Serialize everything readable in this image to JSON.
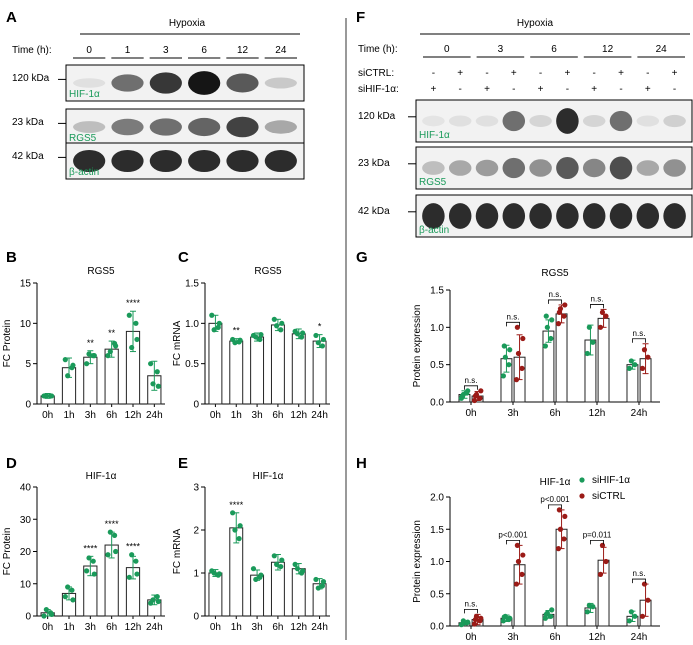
{
  "colors": {
    "green": "#1a9a5a",
    "red": "#9b1b17"
  },
  "panels": {
    "A": "A",
    "B": "B",
    "C": "C",
    "D": "D",
    "E": "E",
    "F": "F",
    "G": "G",
    "H": "H"
  },
  "blotA": {
    "title": "Hypoxia",
    "time_label": "Time (h):",
    "times": [
      "0",
      "1",
      "3",
      "6",
      "12",
      "24"
    ],
    "rows": [
      {
        "kda": "120 kDa",
        "protein": "HIF-1α",
        "levels": [
          0.05,
          0.55,
          0.8,
          0.95,
          0.65,
          0.15
        ]
      },
      {
        "kda": "23 kDa",
        "protein": "RGS5",
        "levels": [
          0.2,
          0.5,
          0.55,
          0.6,
          0.75,
          0.3
        ]
      },
      {
        "kda": "42 kDa",
        "protein": "β-actin",
        "levels": [
          0.85,
          0.85,
          0.85,
          0.85,
          0.85,
          0.85
        ]
      }
    ]
  },
  "blotF": {
    "title": "Hypoxia",
    "time_label": "Time (h):",
    "times": [
      "0",
      "3",
      "6",
      "12",
      "24"
    ],
    "siCTRL_label": "siCTRL:",
    "siHIF_label": "siHIF-1α:",
    "siCTRL": [
      "-",
      "+",
      "-",
      "+",
      "-",
      "+",
      "-",
      "+",
      "-",
      "+"
    ],
    "siHIF": [
      "+",
      "-",
      "+",
      "-",
      "+",
      "-",
      "+",
      "-",
      "+",
      "-"
    ],
    "rows": [
      {
        "kda": "120 kDa",
        "protein": "HIF-1α",
        "levels": [
          0.03,
          0.05,
          0.05,
          0.55,
          0.1,
          0.85,
          0.1,
          0.55,
          0.05,
          0.12
        ]
      },
      {
        "kda": "23 kDa",
        "protein": "RGS5",
        "levels": [
          0.2,
          0.3,
          0.35,
          0.55,
          0.4,
          0.65,
          0.45,
          0.7,
          0.3,
          0.4
        ]
      },
      {
        "kda": "42 kDa",
        "protein": "β-actin",
        "levels": [
          0.85,
          0.85,
          0.85,
          0.85,
          0.85,
          0.85,
          0.85,
          0.85,
          0.85,
          0.85
        ]
      }
    ]
  },
  "chart_data": [
    {
      "panel": "B",
      "type": "bar",
      "title": "RGS5",
      "ylabel": "FC Protein",
      "categories": [
        "0h",
        "1h",
        "3h",
        "6h",
        "12h",
        "24h"
      ],
      "values": [
        1,
        4.5,
        5.8,
        6.8,
        9.0,
        3.5
      ],
      "errors": [
        0.3,
        1.2,
        0.8,
        1.0,
        2.5,
        1.8
      ],
      "points": [
        [
          1,
          1,
          1,
          1
        ],
        [
          5.5,
          4.5,
          3.5,
          4.8
        ],
        [
          5,
          6,
          6.2,
          6
        ],
        [
          6,
          7.5,
          6.5,
          7.2
        ],
        [
          11,
          10,
          7,
          8
        ],
        [
          5,
          4,
          2.5,
          2.2
        ]
      ],
      "sig": [
        "",
        "",
        "**",
        "**",
        "****",
        ""
      ],
      "ylim": [
        0,
        15
      ],
      "yticks": [
        0,
        5,
        10,
        15
      ],
      "color": "green"
    },
    {
      "panel": "C",
      "type": "bar",
      "title": "RGS5",
      "ylabel": "FC mRNA",
      "categories": [
        "0h",
        "1h",
        "3h",
        "6h",
        "12h",
        "24h"
      ],
      "values": [
        1.0,
        0.78,
        0.83,
        0.98,
        0.87,
        0.78
      ],
      "errors": [
        0.1,
        0.03,
        0.05,
        0.07,
        0.06,
        0.08
      ],
      "points": [
        [
          1.1,
          0.95,
          0.92,
          1.0
        ],
        [
          0.8,
          0.77,
          0.76,
          0.79
        ],
        [
          0.85,
          0.8,
          0.83,
          0.86
        ],
        [
          1.05,
          0.92,
          0.97,
          1.0
        ],
        [
          0.9,
          0.83,
          0.87,
          0.88
        ],
        [
          0.85,
          0.72,
          0.76,
          0.8
        ]
      ],
      "sig": [
        "",
        "**",
        "",
        "",
        "",
        "*"
      ],
      "ylim": [
        0,
        1.5
      ],
      "yticks": [
        0,
        0.5,
        1.0,
        1.5
      ],
      "color": "green"
    },
    {
      "panel": "D",
      "type": "bar",
      "title": "HIF-1α",
      "ylabel": "FC Protein",
      "categories": [
        "0h",
        "1h",
        "3h",
        "6h",
        "12h",
        "24h"
      ],
      "values": [
        1,
        7,
        15.5,
        22,
        15,
        5
      ],
      "errors": [
        1,
        2,
        3,
        4,
        3.5,
        1.5
      ],
      "points": [
        [
          0,
          1,
          2,
          0.5
        ],
        [
          6,
          8,
          9,
          5
        ],
        [
          14,
          17,
          18,
          13
        ],
        [
          19,
          25,
          26,
          20
        ],
        [
          12,
          17,
          19,
          13
        ],
        [
          4,
          6,
          5,
          4.5
        ]
      ],
      "sig": [
        "",
        "",
        "****",
        "****",
        "****",
        ""
      ],
      "ylim": [
        0,
        40
      ],
      "yticks": [
        0,
        10,
        20,
        30,
        40
      ],
      "color": "green"
    },
    {
      "panel": "E",
      "type": "bar",
      "title": "HIF-1α",
      "ylabel": "FC mRNA",
      "categories": [
        "0h",
        "1h",
        "3h",
        "6h",
        "12h",
        "24h"
      ],
      "values": [
        1.0,
        2.05,
        0.95,
        1.25,
        1.1,
        0.75
      ],
      "errors": [
        0.08,
        0.35,
        0.12,
        0.18,
        0.12,
        0.12
      ],
      "points": [
        [
          1.05,
          0.95,
          1.0,
          0.98
        ],
        [
          2.4,
          1.8,
          2.0,
          2.1
        ],
        [
          1.1,
          0.9,
          0.85,
          0.95
        ],
        [
          1.4,
          1.15,
          1.2,
          1.3
        ],
        [
          1.2,
          1.0,
          1.1,
          1.05
        ],
        [
          0.85,
          0.7,
          0.65,
          0.8
        ]
      ],
      "sig": [
        "",
        "****",
        "",
        "",
        "",
        ""
      ],
      "ylim": [
        0,
        3
      ],
      "yticks": [
        0,
        1,
        2,
        3
      ],
      "color": "green"
    },
    {
      "panel": "G",
      "type": "bar",
      "title": "RGS5",
      "ylabel": "Protein expression",
      "categories": [
        "0h",
        "3h",
        "6h",
        "12h",
        "24h"
      ],
      "series": [
        {
          "name": "siHIF-1α",
          "color": "green",
          "values": [
            0.1,
            0.58,
            0.95,
            0.83,
            0.5
          ],
          "errors": [
            0.05,
            0.18,
            0.15,
            0.2,
            0.06
          ],
          "points": [
            [
              0.05,
              0.12,
              0.1,
              0.15,
              0.08
            ],
            [
              0.35,
              0.5,
              0.6,
              0.7,
              0.75
            ],
            [
              0.75,
              0.85,
              1.0,
              1.1,
              1.15
            ],
            [
              0.65,
              0.8,
              1.0
            ],
            [
              0.45,
              0.5,
              0.55
            ]
          ]
        },
        {
          "name": "siCTRL",
          "color": "red",
          "values": [
            0.08,
            0.6,
            1.18,
            1.12,
            0.58
          ],
          "errors": [
            0.06,
            0.3,
            0.12,
            0.12,
            0.2
          ],
          "points": [
            [
              0.02,
              0.05,
              0.1,
              0.15,
              0.08
            ],
            [
              0.3,
              0.45,
              0.65,
              0.85,
              1.0
            ],
            [
              1.05,
              1.15,
              1.25,
              1.3,
              1.2
            ],
            [
              1.0,
              1.15,
              1.2
            ],
            [
              0.45,
              0.6,
              0.7
            ]
          ]
        }
      ],
      "sig": [
        "n.s.",
        "n.s.",
        "n.s.",
        "n.s.",
        "n.s."
      ],
      "ylim": [
        0,
        1.5
      ],
      "yticks": [
        0.0,
        0.5,
        1.0,
        1.5
      ]
    },
    {
      "panel": "H",
      "type": "bar",
      "title": "HIF-1α",
      "ylabel": "Protein expression",
      "categories": [
        "0h",
        "3h",
        "6h",
        "12h",
        "24h"
      ],
      "series": [
        {
          "name": "siHIF-1α",
          "color": "green",
          "values": [
            0.05,
            0.12,
            0.18,
            0.28,
            0.15
          ],
          "errors": [
            0.03,
            0.05,
            0.06,
            0.07,
            0.08
          ],
          "points": [
            [
              0.02,
              0.05,
              0.08,
              0.06,
              0.03
            ],
            [
              0.08,
              0.1,
              0.15,
              0.12,
              0.14
            ],
            [
              0.12,
              0.15,
              0.2,
              0.25,
              0.18
            ],
            [
              0.22,
              0.3,
              0.32
            ],
            [
              0.08,
              0.15,
              0.22
            ]
          ]
        },
        {
          "name": "siCTRL",
          "color": "red",
          "values": [
            0.1,
            0.95,
            1.5,
            1.02,
            0.4
          ],
          "errors": [
            0.08,
            0.3,
            0.3,
            0.2,
            0.25
          ],
          "points": [
            [
              0.03,
              0.08,
              0.15,
              0.12,
              0.1
            ],
            [
              0.65,
              0.8,
              1.0,
              1.1,
              1.25
            ],
            [
              1.2,
              1.35,
              1.5,
              1.7,
              1.8
            ],
            [
              0.8,
              1.0,
              1.25
            ],
            [
              0.15,
              0.4,
              0.65
            ]
          ]
        }
      ],
      "sig": [
        "n.s.",
        "p<0.001",
        "p<0.001",
        "p=0.011",
        "n.s."
      ],
      "ylim": [
        0,
        2.0
      ],
      "yticks": [
        0.0,
        0.5,
        1.0,
        1.5,
        2.0
      ],
      "legend": [
        {
          "name": "siHIF-1α",
          "color": "green"
        },
        {
          "name": "siCTRL",
          "color": "red"
        }
      ]
    }
  ]
}
